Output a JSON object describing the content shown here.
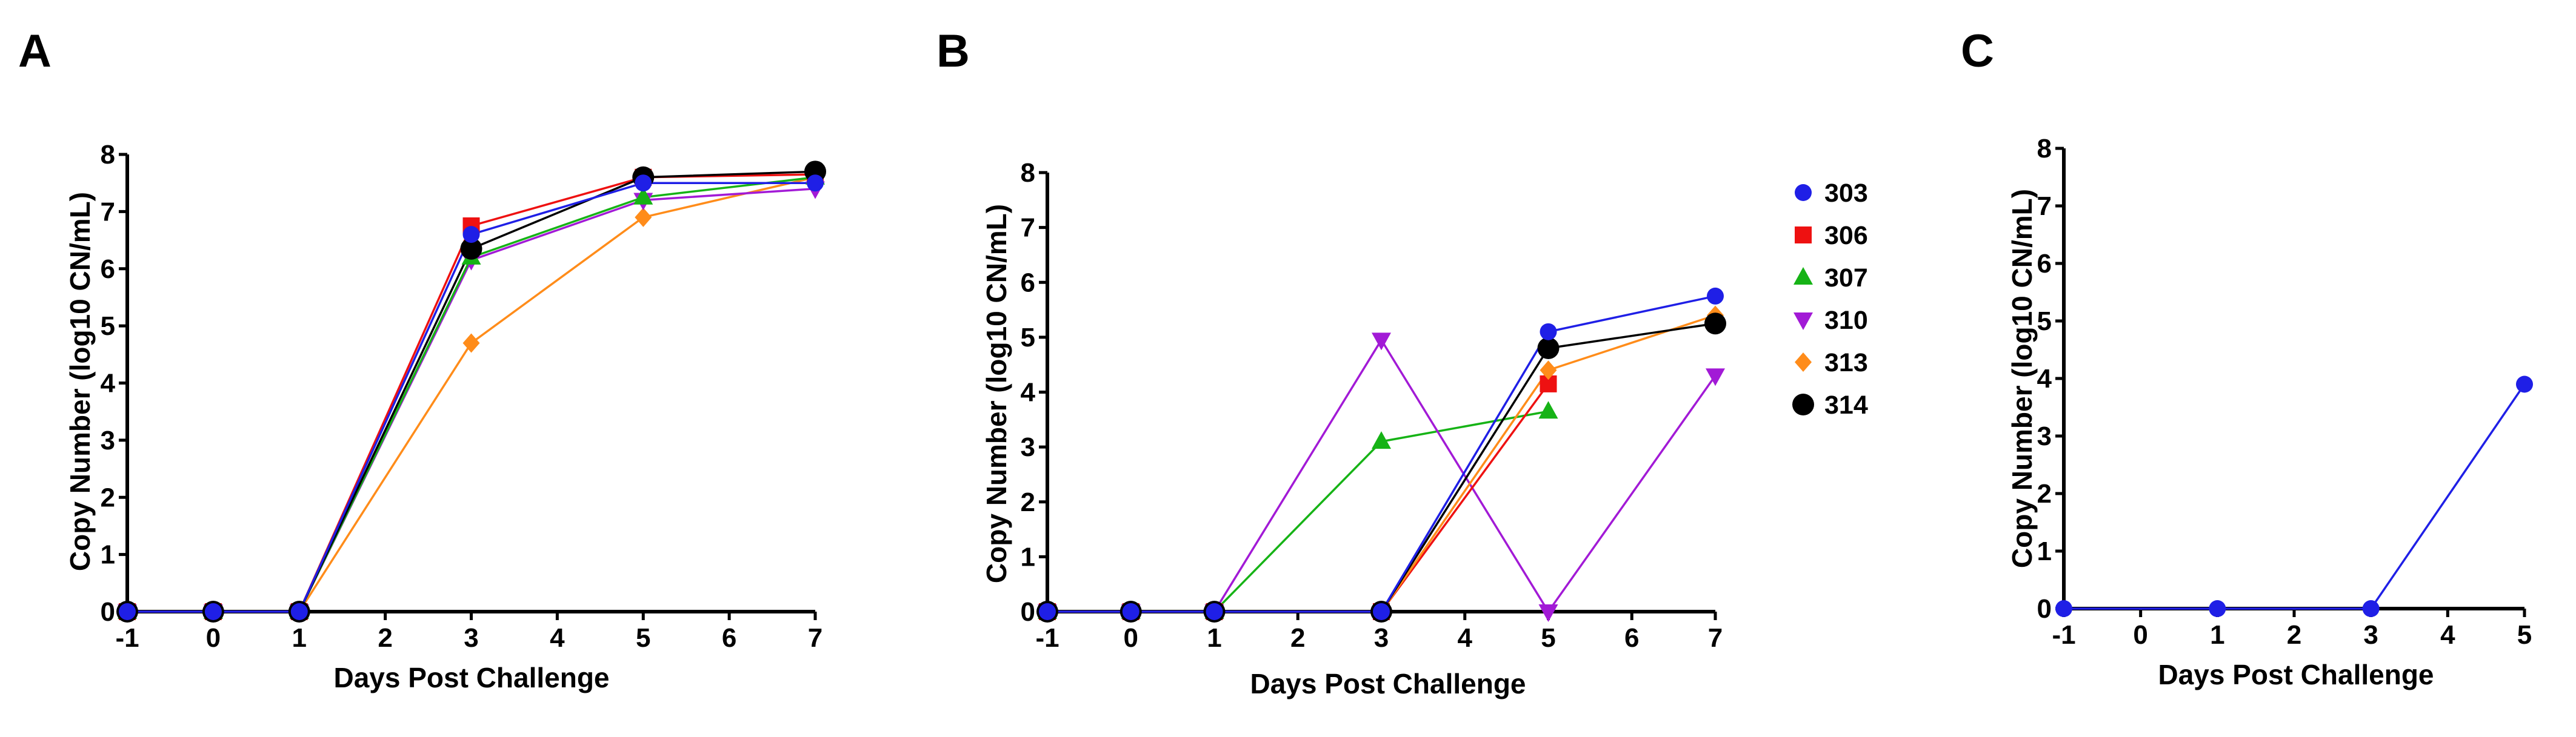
{
  "figure": {
    "series_colors": {
      "303": "#1f1fe6",
      "306": "#ee1111",
      "307": "#16b316",
      "310": "#a21ad6",
      "313": "#ff8c1a",
      "314": "#000000"
    },
    "series_markers": {
      "303": "circle",
      "306": "square",
      "307": "triangle-up",
      "310": "triangle-down",
      "313": "diamond",
      "314": "circle-large"
    },
    "legend": [
      {
        "name": "303",
        "marker": "circle",
        "color": "#1f1fe6"
      },
      {
        "name": "306",
        "marker": "square",
        "color": "#ee1111"
      },
      {
        "name": "307",
        "marker": "triangle-up",
        "color": "#16b316"
      },
      {
        "name": "310",
        "marker": "triangle-down",
        "color": "#a21ad6"
      },
      {
        "name": "313",
        "marker": "diamond",
        "color": "#ff8c1a"
      },
      {
        "name": "314",
        "marker": "circle-large",
        "color": "#000000"
      }
    ]
  },
  "chart_data": [
    {
      "panel": "A",
      "type": "line",
      "xlabel": "Days Post Challenge",
      "ylabel": "Copy Number (log10 CN/mL)",
      "xlim": [
        -1,
        7
      ],
      "ylim": [
        0,
        8
      ],
      "xticks": [
        -1,
        0,
        1,
        2,
        3,
        4,
        5,
        6,
        7
      ],
      "yticks": [
        0,
        1,
        2,
        3,
        4,
        5,
        6,
        7,
        8
      ],
      "series": [
        {
          "name": "313",
          "x": [
            -1,
            0,
            1,
            3,
            5,
            7
          ],
          "y": [
            0,
            0,
            0,
            4.7,
            6.9,
            7.6
          ]
        },
        {
          "name": "310",
          "x": [
            -1,
            0,
            1,
            3,
            5,
            7
          ],
          "y": [
            0,
            0,
            0,
            6.15,
            7.2,
            7.4
          ]
        },
        {
          "name": "307",
          "x": [
            -1,
            0,
            1,
            3,
            5,
            7
          ],
          "y": [
            0,
            0,
            0,
            6.2,
            7.25,
            7.6
          ]
        },
        {
          "name": "306",
          "x": [
            -1,
            0,
            1,
            3,
            5,
            7
          ],
          "y": [
            0,
            0,
            0,
            6.75,
            7.6,
            7.65
          ]
        },
        {
          "name": "314",
          "x": [
            -1,
            0,
            1,
            3,
            5,
            7
          ],
          "y": [
            0,
            0,
            0,
            6.35,
            7.6,
            7.7
          ]
        },
        {
          "name": "303",
          "x": [
            -1,
            0,
            1,
            3,
            5,
            7
          ],
          "y": [
            0,
            0,
            0,
            6.6,
            7.5,
            7.5
          ]
        }
      ]
    },
    {
      "panel": "B",
      "type": "line",
      "xlabel": "Days Post Challenge",
      "ylabel": "Copy Number (log10 CN/mL)",
      "xlim": [
        -1,
        7
      ],
      "ylim": [
        0,
        8
      ],
      "xticks": [
        -1,
        0,
        1,
        2,
        3,
        4,
        5,
        6,
        7
      ],
      "yticks": [
        0,
        1,
        2,
        3,
        4,
        5,
        6,
        7,
        8
      ],
      "series": [
        {
          "name": "307",
          "x": [
            -1,
            0,
            1,
            3,
            5
          ],
          "y": [
            0,
            0,
            0,
            3.1,
            3.65
          ]
        },
        {
          "name": "310",
          "x": [
            -1,
            0,
            1,
            3,
            5,
            7
          ],
          "y": [
            0,
            0,
            0,
            4.95,
            0,
            4.3
          ]
        },
        {
          "name": "306",
          "x": [
            -1,
            0,
            1,
            3,
            5
          ],
          "y": [
            0,
            0,
            0,
            0,
            4.15
          ]
        },
        {
          "name": "313",
          "x": [
            -1,
            0,
            1,
            3,
            5,
            7
          ],
          "y": [
            0,
            0,
            0,
            0,
            4.4,
            5.4
          ]
        },
        {
          "name": "314",
          "x": [
            -1,
            0,
            1,
            3,
            5,
            7
          ],
          "y": [
            0,
            0,
            0,
            0,
            4.8,
            5.25
          ]
        },
        {
          "name": "303",
          "x": [
            -1,
            0,
            1,
            3,
            5,
            7
          ],
          "y": [
            0,
            0,
            0,
            0,
            5.1,
            5.75
          ]
        }
      ]
    },
    {
      "panel": "C",
      "type": "line",
      "xlabel": "Days Post Challenge",
      "ylabel": "Copy Number (log10 CN/mL)",
      "xlim": [
        -1,
        5
      ],
      "ylim": [
        0,
        8
      ],
      "xticks": [
        -1,
        0,
        1,
        2,
        3,
        4,
        5
      ],
      "yticks": [
        0,
        1,
        2,
        3,
        4,
        5,
        6,
        7,
        8
      ],
      "series": [
        {
          "name": "303",
          "x": [
            -1,
            1,
            3,
            5
          ],
          "y": [
            0,
            0,
            0,
            3.9
          ]
        }
      ]
    }
  ]
}
